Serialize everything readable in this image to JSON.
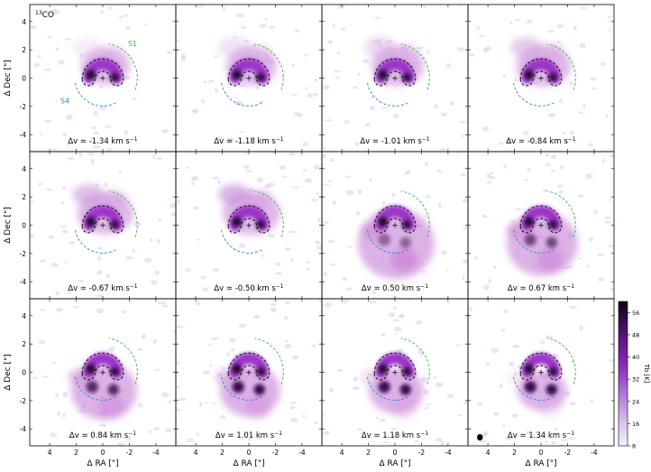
{
  "chart_data": {
    "type": "heatmap",
    "molecule_label": "13CO",
    "molecule_prefix": "13",
    "molecule_suffix": "CO",
    "grid": "3x4 channel maps",
    "xlabel": "Δ RA [\"]",
    "ylabel": "Δ Dec [\"]",
    "xlim": [
      5.5,
      -5.5
    ],
    "ylim": [
      -5.2,
      5.2
    ],
    "xticks": [
      4,
      2,
      0,
      -2,
      -4
    ],
    "yticks": [
      4,
      2,
      0,
      -2,
      -4
    ],
    "colorbar": {
      "label": "Tb [K]",
      "ticks": [
        8,
        16,
        24,
        32,
        40,
        48,
        56
      ],
      "range": [
        8,
        60
      ]
    },
    "arc_labels": {
      "s1": "S1",
      "s4": "S4"
    },
    "panels": [
      {
        "velocity": -1.34,
        "label": "Δv = -1.34 km s"
      },
      {
        "velocity": -1.18,
        "label": "Δv = -1.18 km s"
      },
      {
        "velocity": -1.01,
        "label": "Δv = -1.01 km s"
      },
      {
        "velocity": -0.84,
        "label": "Δv = -0.84 km s"
      },
      {
        "velocity": -0.67,
        "label": "Δv = -0.67 km s"
      },
      {
        "velocity": -0.5,
        "label": "Δv = -0.50 km s"
      },
      {
        "velocity": 0.5,
        "label": "Δv = 0.50 km s"
      },
      {
        "velocity": 0.67,
        "label": "Δv = 0.67 km s"
      },
      {
        "velocity": 0.84,
        "label": "Δv = 0.84 km s"
      },
      {
        "velocity": 1.01,
        "label": "Δv = 1.01 km s"
      },
      {
        "velocity": 1.18,
        "label": "Δv = 1.18 km s"
      },
      {
        "velocity": 1.34,
        "label": "Δv = 1.34 km s"
      }
    ],
    "unit_exponent": "−1",
    "colors": {
      "s1_arc": "#3cb34a",
      "s4_arc": "#2b8ad6",
      "ring_outline": "#000000"
    }
  }
}
